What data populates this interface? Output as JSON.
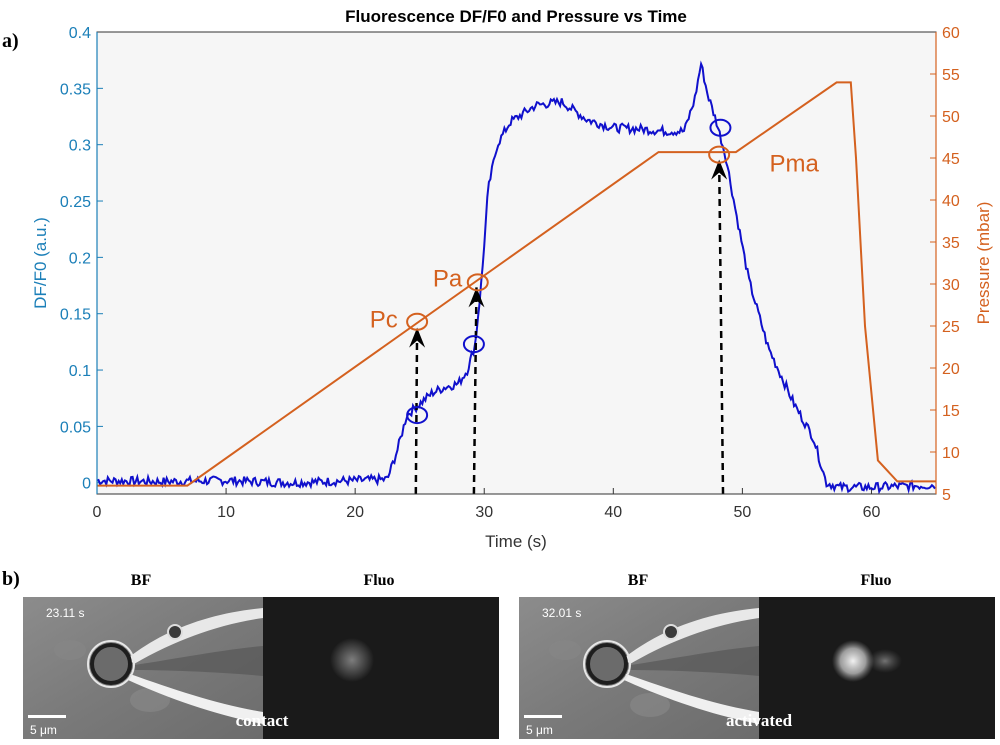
{
  "panel_labels": {
    "a": "a)",
    "b": "b)"
  },
  "colors": {
    "fluorescence": "#1010cc",
    "pressure": "#d4611f",
    "left_axis": "#1b7fb8",
    "right_axis": "#d4611f",
    "plot_bg": "#f6f6f6"
  },
  "chart_data": {
    "type": "line",
    "title": "Fluorescence DF/F0 and Pressure vs Time",
    "xlabel": "Time (s)",
    "ylabel_left": "DF/F0  (a.u.)",
    "ylabel_right": "Pressure  (mbar)",
    "xlim": [
      0,
      65
    ],
    "ylim_left": [
      -0.01,
      0.4
    ],
    "ylim_right": [
      5,
      60
    ],
    "x_ticks": [
      "0",
      "10",
      "20",
      "30",
      "40",
      "50",
      "60"
    ],
    "y_left_ticks": [
      "0",
      "0.05",
      "0.1",
      "0.15",
      "0.2",
      "0.25",
      "0.3",
      "0.35",
      "0.4"
    ],
    "y_right_ticks": [
      "5",
      "10",
      "15",
      "20",
      "25",
      "30",
      "35",
      "40",
      "45",
      "50",
      "55",
      "60"
    ],
    "grid": false,
    "series": [
      {
        "axis": "left",
        "x": [
          0,
          5,
          10,
          15,
          20,
          22.5,
          23.3,
          24,
          25,
          26,
          27,
          28,
          28.7,
          29.3,
          29.8,
          30.3,
          31,
          32,
          34,
          36,
          38,
          40,
          42,
          44,
          45.5,
          46.3,
          46.8,
          47.3,
          48,
          48.7,
          49.5,
          50.5,
          52,
          54,
          55.5,
          56.5,
          57.5,
          60,
          65
        ],
        "values": [
          0.002,
          0.001,
          0.002,
          0.0,
          0.002,
          0.003,
          0.03,
          0.06,
          0.07,
          0.08,
          0.085,
          0.088,
          0.1,
          0.123,
          0.18,
          0.26,
          0.3,
          0.32,
          0.335,
          0.338,
          0.322,
          0.315,
          0.314,
          0.312,
          0.312,
          0.34,
          0.372,
          0.345,
          0.32,
          0.29,
          0.24,
          0.18,
          0.12,
          0.07,
          0.04,
          0.0,
          -0.004,
          -0.004,
          -0.002
        ],
        "noise": 0.004
      },
      {
        "axis": "right",
        "x": [
          0,
          7,
          43.5,
          47,
          49.5,
          57.3,
          58.4,
          58.8,
          59.5,
          60.5,
          62,
          65
        ],
        "values": [
          6,
          6,
          45.7,
          45.7,
          45.7,
          54,
          54,
          45,
          25,
          9,
          6.5,
          6.5
        ]
      }
    ],
    "annotations": [
      {
        "label": "Pc",
        "x": 24.8,
        "y_right": 25.5,
        "label_x": 23.3,
        "label_y_right": 24.8,
        "anchor": "end"
      },
      {
        "label": "Pa",
        "x": 29.5,
        "y_right": 30.2,
        "label_x": 28.3,
        "label_y_right": 29.7,
        "anchor": "end"
      },
      {
        "label": "Pma",
        "x": 48.2,
        "y_right": 45.4,
        "label_x": 52.1,
        "label_y_right": 43.4,
        "anchor": "start"
      }
    ],
    "circle_markers_left": [
      {
        "x": 24.8,
        "y": 0.06
      },
      {
        "x": 29.2,
        "y": 0.123
      },
      {
        "x": 48.3,
        "y": 0.315
      }
    ],
    "arrows": [
      {
        "x_start": 24.7,
        "x_end": 24.8,
        "y_start_left": -0.01,
        "y_end_right": 24.8
      },
      {
        "x_start": 29.2,
        "x_end": 29.4,
        "y_start_left": -0.01,
        "y_end_right": 29.6
      },
      {
        "x_start": 48.5,
        "x_end": 48.2,
        "y_start_left": -0.01,
        "y_end_right": 44.8
      }
    ]
  },
  "frames": [
    {
      "time": "23.11 s",
      "bf_title": "BF",
      "fluo_title": "Fluo",
      "scale_label": "5 μm",
      "caption": "contact",
      "fluo_glow": 0.35
    },
    {
      "time": "32.01 s",
      "bf_title": "BF",
      "fluo_title": "Fluo",
      "scale_label": "5 μm",
      "caption": "activated",
      "fluo_glow": 0.85
    }
  ]
}
